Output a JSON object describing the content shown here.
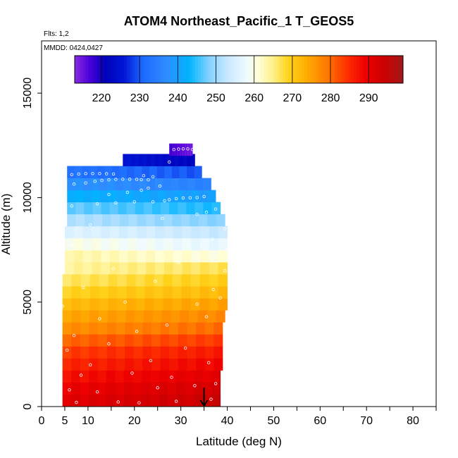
{
  "chart_data": {
    "type": "heatmap",
    "title": "ATOM4 Northeast_Pacific_1 T_GEOS5",
    "flights_note": "Flts: 1,2",
    "date_note": "MMDD: 0424,0427",
    "xlabel": "Latitude (deg N)",
    "ylabel": "Altitude (m)",
    "xlim": [
      0,
      85
    ],
    "ylim": [
      0,
      17500
    ],
    "x_ticks": [
      0,
      5,
      10,
      20,
      30,
      40,
      50,
      60,
      70,
      80
    ],
    "x_minor_ticks": [
      0,
      5,
      10,
      15,
      20,
      25,
      30,
      35,
      40,
      45,
      50,
      55,
      60,
      65,
      70,
      75,
      80,
      85
    ],
    "y_ticks": [
      0,
      5000,
      10000,
      15000
    ],
    "colorbar": {
      "min": 213,
      "max": 299,
      "ticks": [
        220,
        230,
        240,
        250,
        260,
        270,
        280,
        290
      ],
      "stops": [
        {
          "v": 213,
          "c": "#8a2be2"
        },
        {
          "v": 217,
          "c": "#4b00d8"
        },
        {
          "v": 221,
          "c": "#0000b8"
        },
        {
          "v": 226,
          "c": "#0018d8"
        },
        {
          "v": 231,
          "c": "#1e6bff"
        },
        {
          "v": 237,
          "c": "#2f8cff"
        },
        {
          "v": 243,
          "c": "#00b4ff"
        },
        {
          "v": 248,
          "c": "#80d0ff"
        },
        {
          "v": 253,
          "c": "#c8e8ff"
        },
        {
          "v": 258,
          "c": "#eefaff"
        },
        {
          "v": 261,
          "c": "#ffffd8"
        },
        {
          "v": 265,
          "c": "#fff08a"
        },
        {
          "v": 269,
          "c": "#ffd21a"
        },
        {
          "v": 274,
          "c": "#ffaa00"
        },
        {
          "v": 279,
          "c": "#ff7a00"
        },
        {
          "v": 284,
          "c": "#ff3300"
        },
        {
          "v": 289,
          "c": "#ee0000"
        },
        {
          "v": 294,
          "c": "#cc0000"
        },
        {
          "v": 299,
          "c": "#a01818"
        }
      ]
    },
    "layer_height_m": 575,
    "layers": [
      {
        "alt": 300,
        "lat0": 4.5,
        "lat1": 38.5,
        "t": 292.5
      },
      {
        "alt": 875,
        "lat0": 4.5,
        "lat1": 38.5,
        "t": 291
      },
      {
        "alt": 1450,
        "lat0": 4.5,
        "lat1": 38.5,
        "t": 289
      },
      {
        "alt": 2025,
        "lat0": 4.5,
        "lat1": 39,
        "t": 287
      },
      {
        "alt": 2600,
        "lat0": 4.5,
        "lat1": 39,
        "t": 285
      },
      {
        "alt": 3175,
        "lat0": 4.5,
        "lat1": 39,
        "t": 282
      },
      {
        "alt": 3750,
        "lat0": 4.5,
        "lat1": 39,
        "t": 278.5
      },
      {
        "alt": 4325,
        "lat0": 4.5,
        "lat1": 39.5,
        "t": 276
      },
      {
        "alt": 4900,
        "lat0": 4.5,
        "lat1": 40,
        "t": 273.5
      },
      {
        "alt": 5475,
        "lat0": 4.5,
        "lat1": 40,
        "t": 270.5
      },
      {
        "alt": 6050,
        "lat0": 4.5,
        "lat1": 40,
        "t": 268
      },
      {
        "alt": 6625,
        "lat0": 5,
        "lat1": 40,
        "t": 265.5
      },
      {
        "alt": 7200,
        "lat0": 5,
        "lat1": 40,
        "t": 262
      },
      {
        "alt": 7775,
        "lat0": 5,
        "lat1": 40,
        "t": 258.5
      },
      {
        "alt": 8350,
        "lat0": 5,
        "lat1": 40,
        "t": 254.5
      },
      {
        "alt": 8925,
        "lat0": 5.5,
        "lat1": 39.5,
        "t": 250
      },
      {
        "alt": 9500,
        "lat0": 5.5,
        "lat1": 38.5,
        "t": 245.5
      },
      {
        "alt": 10075,
        "lat0": 5.5,
        "lat1": 37.5,
        "t": 241
      },
      {
        "alt": 10650,
        "lat0": 5.5,
        "lat1": 36.5,
        "t": 236.5
      },
      {
        "alt": 11225,
        "lat0": 5.5,
        "lat1": 34.5,
        "t": 231
      },
      {
        "alt": 11800,
        "lat0": 17.5,
        "lat1": 33,
        "t": 223.5
      },
      {
        "alt": 12300,
        "lat0": 27.5,
        "lat1": 32.5,
        "t": 216
      }
    ],
    "samples": [
      [
        7.5,
        200
      ],
      [
        16.5,
        220
      ],
      [
        21,
        180
      ],
      [
        29,
        250
      ],
      [
        36.5,
        350
      ],
      [
        6,
        800
      ],
      [
        12,
        700
      ],
      [
        25,
        900
      ],
      [
        33,
        1000
      ],
      [
        37.5,
        1100
      ],
      [
        8.5,
        1500
      ],
      [
        19.5,
        1600
      ],
      [
        28,
        1400
      ],
      [
        10.5,
        2000
      ],
      [
        23.5,
        2200
      ],
      [
        36,
        2100
      ],
      [
        5.5,
        2700
      ],
      [
        14.5,
        3000
      ],
      [
        31,
        2800
      ],
      [
        7,
        3400
      ],
      [
        20.5,
        3600
      ],
      [
        27,
        3900
      ],
      [
        12.5,
        4200
      ],
      [
        35.5,
        4300
      ],
      [
        4.5,
        4800
      ],
      [
        18,
        5000
      ],
      [
        33.5,
        4900
      ],
      [
        38.5,
        5200
      ],
      [
        9,
        5700
      ],
      [
        24.5,
        6000
      ],
      [
        37,
        5600
      ],
      [
        39.5,
        6500
      ],
      [
        15.5,
        6600
      ],
      [
        29.5,
        6900
      ],
      [
        39.8,
        7500
      ],
      [
        6.5,
        7700
      ],
      [
        22,
        7900
      ],
      [
        36.8,
        8000
      ],
      [
        39.5,
        8500
      ],
      [
        10.5,
        8700
      ],
      [
        26,
        9000
      ],
      [
        33.5,
        9200
      ],
      [
        35.5,
        9300
      ],
      [
        37.5,
        9450
      ],
      [
        6.5,
        9600
      ],
      [
        12,
        9700
      ],
      [
        16,
        9750
      ],
      [
        20,
        9800
      ],
      [
        24,
        9800
      ],
      [
        26.5,
        9850
      ],
      [
        27.5,
        9900
      ],
      [
        29,
        9950
      ],
      [
        30.5,
        9980
      ],
      [
        32,
        9990
      ],
      [
        33.5,
        10000
      ],
      [
        35,
        10050
      ],
      [
        14.5,
        10150
      ],
      [
        18.5,
        10250
      ],
      [
        21.5,
        10350
      ],
      [
        23,
        10450
      ],
      [
        25.5,
        10550
      ],
      [
        7,
        10650
      ],
      [
        9.5,
        10700
      ],
      [
        11.5,
        10780
      ],
      [
        13,
        10820
      ],
      [
        14.5,
        10850
      ],
      [
        16,
        10870
      ],
      [
        17.5,
        10880
      ],
      [
        19,
        10880
      ],
      [
        20.5,
        10870
      ],
      [
        21.5,
        10860
      ],
      [
        23,
        10850
      ],
      [
        6.5,
        11100
      ],
      [
        8,
        11130
      ],
      [
        9.5,
        11150
      ],
      [
        11,
        11150
      ],
      [
        12.5,
        11150
      ],
      [
        14,
        11140
      ],
      [
        15.5,
        11130
      ],
      [
        22,
        11050
      ],
      [
        24,
        11000
      ],
      [
        27.5,
        11700
      ],
      [
        28.5,
        12300
      ],
      [
        29.5,
        12320
      ],
      [
        30.5,
        12330
      ],
      [
        31.5,
        12330
      ],
      [
        32.5,
        12300
      ],
      [
        33.5,
        12280
      ]
    ],
    "marker": {
      "lat": 35,
      "alt_top": 900,
      "alt_bottom": 0
    }
  }
}
